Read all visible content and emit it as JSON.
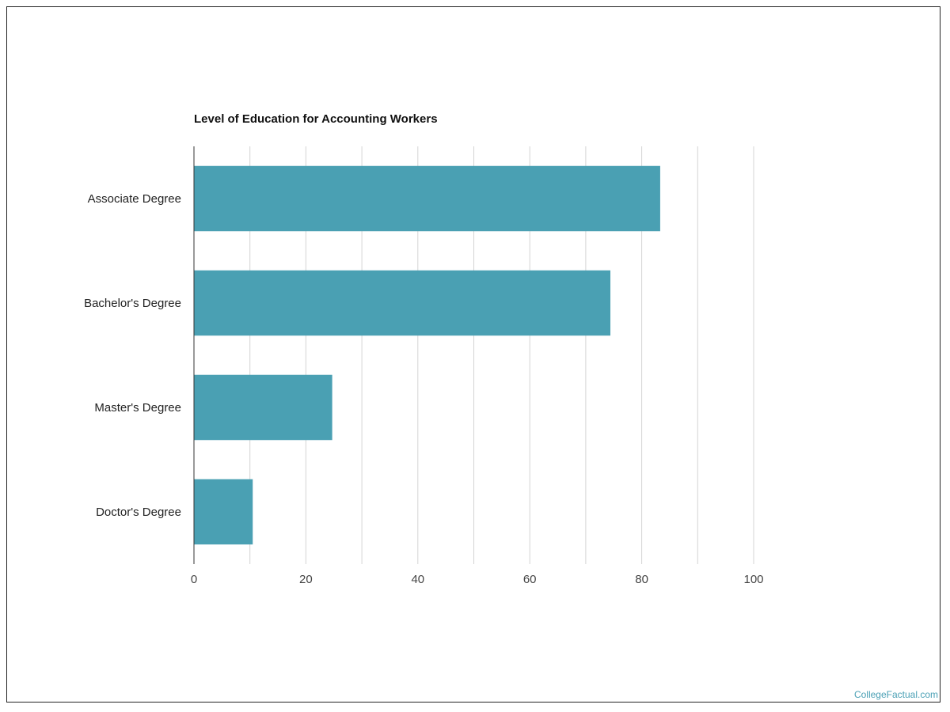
{
  "chart_data": {
    "type": "bar",
    "orientation": "horizontal",
    "title": "Level of Education for Accounting Workers",
    "categories": [
      "Associate Degree",
      "Bachelor's Degree",
      "Master's Degree",
      "Doctor's Degree"
    ],
    "values": [
      83.3,
      74.4,
      24.7,
      10.5
    ],
    "xlim": [
      0,
      100
    ],
    "x_ticks": [
      0,
      20,
      40,
      60,
      80,
      100
    ],
    "grid": true,
    "bar_color": "#4aa0b3",
    "legend": "none"
  },
  "watermark": "CollegeFactual.com"
}
